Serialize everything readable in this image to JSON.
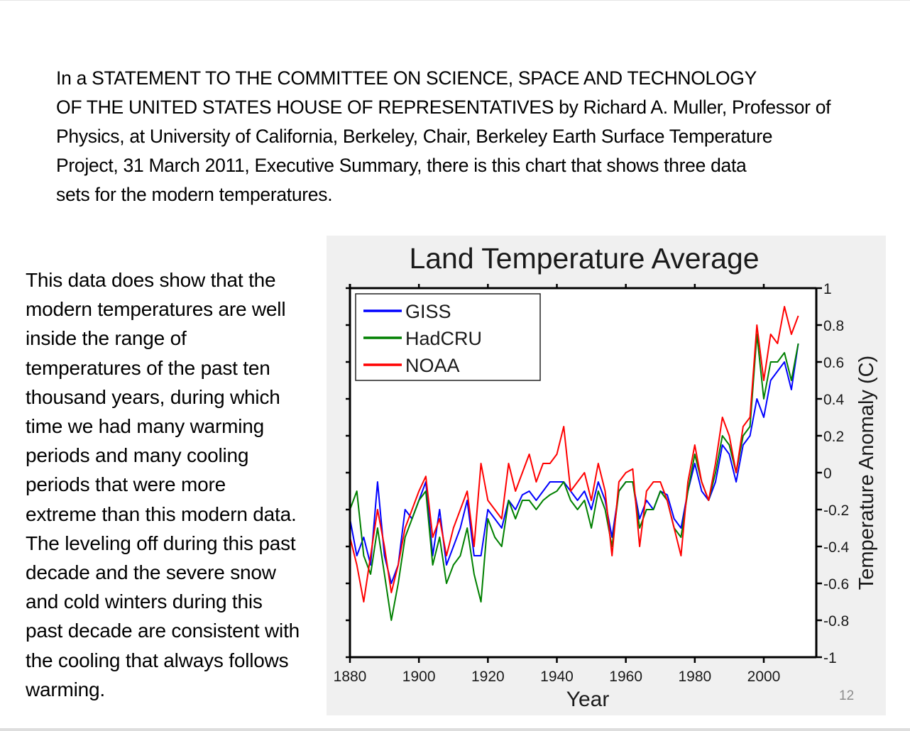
{
  "intro_lines": [
    "In a STATEMENT TO THE COMMITTEE ON SCIENCE, SPACE AND TECHNOLOGY",
    "OF THE UNITED STATES HOUSE OF REPRESENTATIVES by Richard A. Muller,  Professor of",
    "Physics, at University of California,  Berkeley, Chair,  Berkeley Earth Surface Temperature",
    "Project, 31 March 2011, Executive Summary, there is this chart that shows three data",
    "sets for the modern temperatures."
  ],
  "side_text_lines": [
    "This data does show that the",
    "modern temperatures are well",
    "inside the range of",
    "temperatures of the past ten",
    "thousand years, during which",
    "time we had many warming",
    "periods and many  cooling",
    "periods that were more",
    "extreme than this modern data.",
    "The leveling off during this past",
    "decade and the severe snow",
    "and cold winters during this",
    "past decade are consistent with",
    "the cooling that always follows",
    "warming."
  ],
  "page_number": "12",
  "chart_data": {
    "type": "line",
    "title": "Land Temperature Average",
    "xlabel": "Year",
    "ylabel": "Temperature Anomaly (C)",
    "xlim": [
      1880,
      2015
    ],
    "ylim": [
      -1,
      1
    ],
    "x_ticks": [
      1880,
      1900,
      1920,
      1940,
      1960,
      1980,
      2000
    ],
    "x_tick_labels": [
      "1880",
      "1900",
      "1920",
      "1940",
      "1960",
      "1980",
      "2000"
    ],
    "y_ticks": [
      1,
      0.8,
      0.6,
      0.4,
      0.2,
      0,
      -0.2,
      -0.4,
      -0.6,
      -0.8,
      -1
    ],
    "y_tick_labels": [
      "1",
      "0.8",
      "0.6",
      "0.4",
      "0.2",
      "0",
      "-0.2",
      "-0.4",
      "-0.6",
      "-0.8",
      "-1"
    ],
    "y_axis_side": "right",
    "grid": false,
    "legend_position": "top-left",
    "x": [
      1880,
      1882,
      1884,
      1886,
      1888,
      1890,
      1892,
      1894,
      1896,
      1898,
      1900,
      1902,
      1904,
      1906,
      1908,
      1910,
      1912,
      1914,
      1916,
      1918,
      1920,
      1922,
      1924,
      1926,
      1928,
      1930,
      1932,
      1934,
      1936,
      1938,
      1940,
      1942,
      1944,
      1946,
      1948,
      1950,
      1952,
      1954,
      1956,
      1958,
      1960,
      1962,
      1964,
      1966,
      1968,
      1970,
      1972,
      1974,
      1976,
      1978,
      1980,
      1982,
      1984,
      1986,
      1988,
      1990,
      1992,
      1994,
      1996,
      1998,
      2000,
      2002,
      2004,
      2006,
      2008,
      2010
    ],
    "series": [
      {
        "name": "GISS",
        "color": "#0000ff",
        "values": [
          -0.25,
          -0.45,
          -0.35,
          -0.5,
          -0.05,
          -0.45,
          -0.6,
          -0.5,
          -0.2,
          -0.25,
          -0.15,
          -0.05,
          -0.45,
          -0.2,
          -0.5,
          -0.4,
          -0.3,
          -0.15,
          -0.45,
          -0.45,
          -0.2,
          -0.25,
          -0.3,
          -0.15,
          -0.2,
          -0.12,
          -0.1,
          -0.15,
          -0.1,
          -0.05,
          -0.05,
          -0.05,
          -0.1,
          -0.15,
          -0.1,
          -0.2,
          -0.05,
          -0.15,
          -0.35,
          -0.1,
          -0.05,
          -0.05,
          -0.25,
          -0.15,
          -0.2,
          -0.1,
          -0.12,
          -0.25,
          -0.3,
          -0.1,
          0.05,
          -0.1,
          -0.15,
          -0.05,
          0.15,
          0.1,
          -0.05,
          0.15,
          0.2,
          0.4,
          0.3,
          0.5,
          0.55,
          0.6,
          0.45,
          0.7
        ]
      },
      {
        "name": "HadCRU",
        "color": "#008000",
        "values": [
          -0.2,
          -0.1,
          -0.45,
          -0.55,
          -0.3,
          -0.55,
          -0.8,
          -0.6,
          -0.35,
          -0.25,
          -0.15,
          -0.1,
          -0.5,
          -0.35,
          -0.6,
          -0.5,
          -0.45,
          -0.3,
          -0.55,
          -0.7,
          -0.25,
          -0.35,
          -0.4,
          -0.15,
          -0.25,
          -0.15,
          -0.15,
          -0.2,
          -0.15,
          -0.12,
          -0.1,
          -0.05,
          -0.15,
          -0.2,
          -0.15,
          -0.3,
          -0.1,
          -0.2,
          -0.4,
          -0.1,
          -0.05,
          -0.05,
          -0.3,
          -0.2,
          -0.2,
          -0.1,
          -0.15,
          -0.3,
          -0.35,
          -0.1,
          0.1,
          -0.05,
          -0.15,
          -0.0,
          0.2,
          0.15,
          0.0,
          0.2,
          0.25,
          0.75,
          0.4,
          0.6,
          0.6,
          0.65,
          0.5,
          0.7
        ]
      },
      {
        "name": "NOAA",
        "color": "#ff0000",
        "values": [
          -0.35,
          -0.5,
          -0.7,
          -0.45,
          -0.2,
          -0.4,
          -0.65,
          -0.5,
          -0.3,
          -0.2,
          -0.1,
          -0.02,
          -0.35,
          -0.25,
          -0.45,
          -0.3,
          -0.2,
          -0.1,
          -0.4,
          0.05,
          -0.15,
          -0.2,
          -0.25,
          0.05,
          -0.1,
          0.0,
          0.1,
          -0.05,
          0.05,
          0.05,
          0.1,
          0.25,
          -0.1,
          -0.05,
          0.0,
          -0.15,
          0.05,
          -0.1,
          -0.45,
          -0.05,
          0.0,
          0.02,
          -0.4,
          -0.1,
          -0.05,
          -0.05,
          -0.15,
          -0.3,
          -0.45,
          -0.05,
          0.15,
          -0.05,
          -0.15,
          0.05,
          0.3,
          0.2,
          0.0,
          0.25,
          0.3,
          0.8,
          0.5,
          0.75,
          0.7,
          0.9,
          0.75,
          0.85
        ]
      }
    ]
  }
}
